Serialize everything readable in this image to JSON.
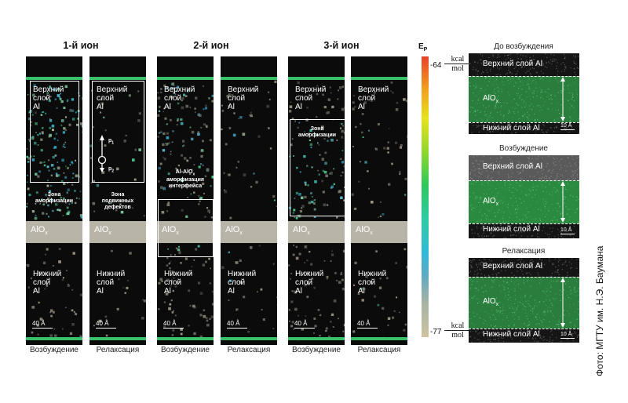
{
  "ion_titles": [
    "1-й ион",
    "2-й ион",
    "3-й ион"
  ],
  "captions": [
    "Возбуждение",
    "Релаксация",
    "Возбуждение",
    "Релаксация",
    "Возбуждение",
    "Релаксация"
  ],
  "panel_labels": {
    "upper": [
      "Верхний",
      "слой",
      "Al"
    ],
    "lower": [
      "Нижний",
      "слой",
      "Al"
    ],
    "alox": "AlO",
    "alox_sub": "x",
    "scale": "40 Å"
  },
  "annotations": {
    "amorph_zone": [
      "Зона",
      "аморфизации"
    ],
    "mobile_defects": [
      "Зона",
      "подвижных",
      "дефектов"
    ],
    "p1": "p",
    "p1_sub": "1",
    "p2": "p",
    "p2_sub": "2",
    "interface": [
      "Al-AlO",
      "аморфизация",
      "интерфейса"
    ],
    "interface_sub": "x",
    "zone_amorph3": [
      "Зона",
      "аморфизации"
    ]
  },
  "colorbar": {
    "label": "E",
    "label_sub": "P",
    "max": "-64",
    "min": "-77",
    "unit_num": "kcal",
    "unit_den": "mol",
    "colors": [
      "#e8412d",
      "#f0a21e",
      "#e7e21d",
      "#8fd72d",
      "#2dc85a",
      "#2fcaa6",
      "#33b9d9",
      "#a7b4a4",
      "#cfc3a0"
    ]
  },
  "right_panels": [
    {
      "title": "До возбуждения",
      "upper": "Верхний слой Al",
      "middle": "AlO",
      "lower": "Нижний слой Al",
      "scale": "10 Å"
    },
    {
      "title": "Возбуждение",
      "upper": "Верхний слой Al",
      "middle": "AlO",
      "lower": "Нижний слой Al",
      "scale": "10 Å"
    },
    {
      "title": "Релаксация",
      "upper": "Верхний слой Al",
      "middle": "AlO",
      "lower": "Нижний слой Al",
      "scale": "10 Å"
    }
  ],
  "credit": "Фото: МГТУ им. Н.Э. Баумана"
}
